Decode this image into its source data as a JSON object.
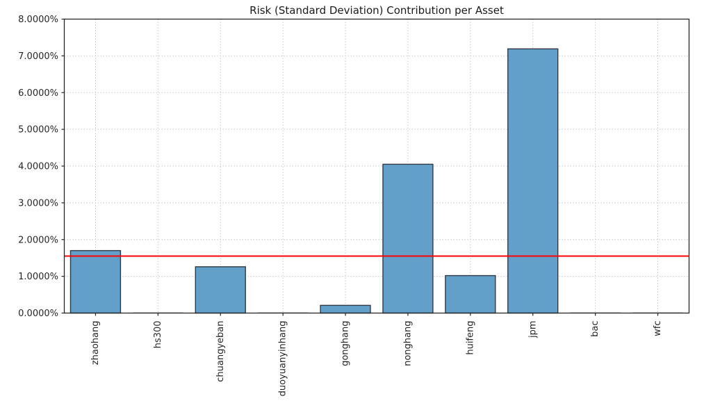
{
  "chart_data": {
    "type": "bar",
    "title": "Risk (Standard Deviation) Contribution per Asset",
    "categories": [
      "zhaohang",
      "hs300",
      "chuangyeban",
      "duoyuanyinhang",
      "gonghang",
      "nonghang",
      "huifeng",
      "jpm",
      "bac",
      "wfc"
    ],
    "values": [
      1.7,
      0.005,
      1.26,
      0.003,
      0.21,
      4.05,
      1.02,
      7.19,
      0.003,
      0.002
    ],
    "unit": "%",
    "xlabel": "",
    "ylabel": "",
    "ylim": [
      0,
      8
    ],
    "ytick_step": 1,
    "ytick_labels": [
      "0.0000%",
      "1.0000%",
      "2.0000%",
      "3.0000%",
      "4.0000%",
      "5.0000%",
      "6.0000%",
      "7.0000%",
      "8.0000%"
    ],
    "reference_line": {
      "name": "mean-risk-contribution-line",
      "value": 1.55,
      "color": "#ff0000"
    },
    "grid": true,
    "legend": false,
    "colors": {
      "bar_fill": "#62a0ca",
      "bar_edge": "#2f3a45",
      "tiny_bar": "#c9ccd0",
      "gridline": "#c9c9c9",
      "spine": "#262626",
      "tick_label": "#262626"
    }
  }
}
